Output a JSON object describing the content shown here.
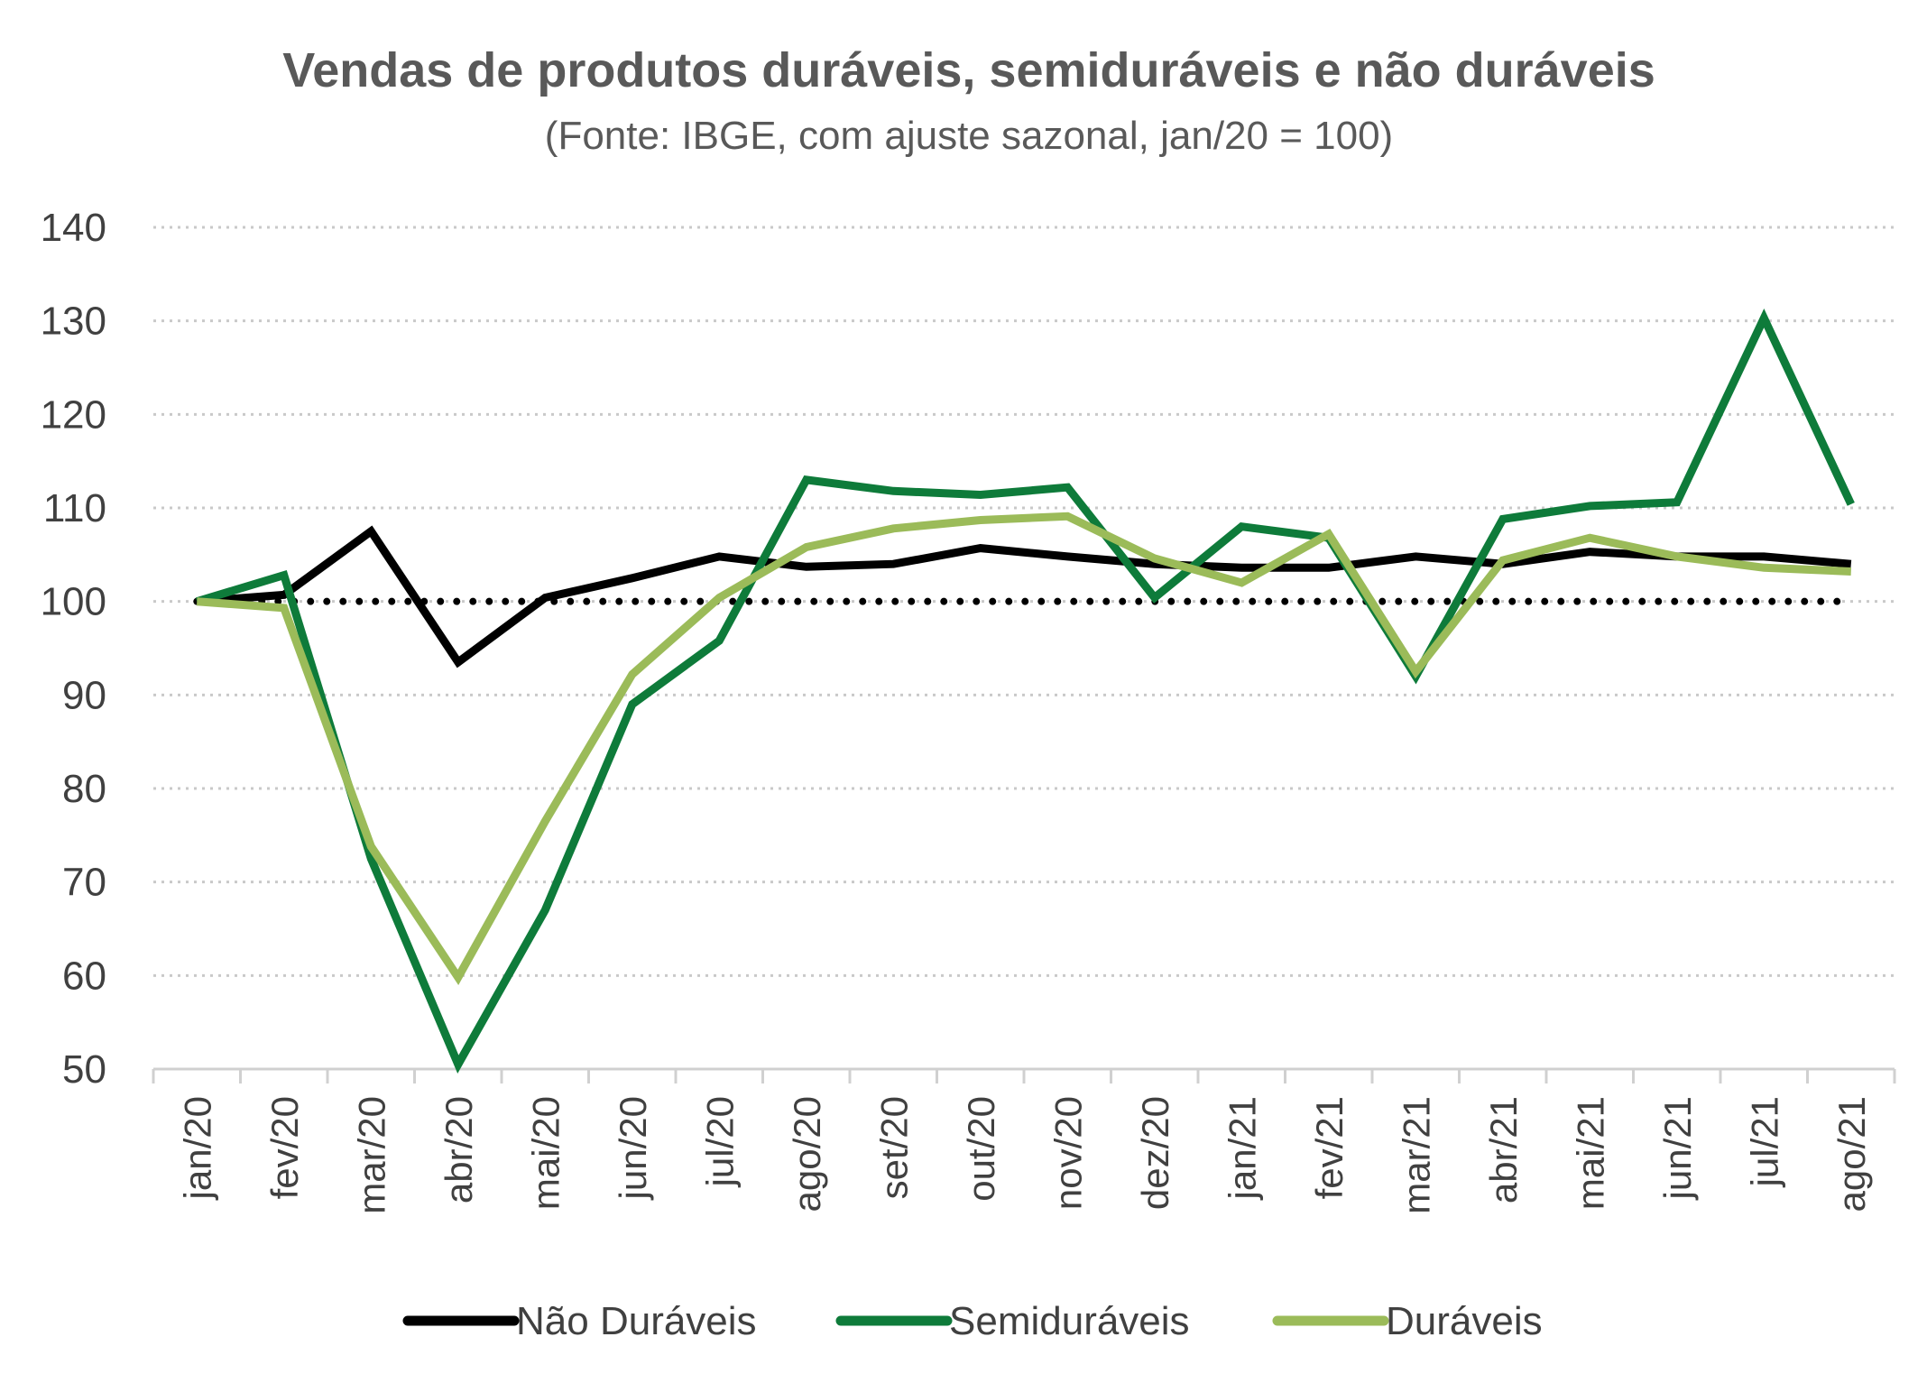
{
  "chart_data": {
    "type": "line",
    "title": "Vendas de produtos duráveis, semiduráveis e não duráveis",
    "subtitle": "(Fonte: IBGE, com ajuste sazonal, jan/20 = 100)",
    "categories": [
      "jan/20",
      "fev/20",
      "mar/20",
      "abr/20",
      "mai/20",
      "jun/20",
      "jul/20",
      "ago/20",
      "set/20",
      "out/20",
      "nov/20",
      "dez/20",
      "jan/21",
      "fev/21",
      "mar/21",
      "abr/21",
      "mai/21",
      "jun/21",
      "jul/21",
      "ago/21"
    ],
    "ylim": [
      50,
      140
    ],
    "yticks": [
      50,
      60,
      70,
      80,
      90,
      100,
      110,
      120,
      130,
      140
    ],
    "grid": true,
    "legend_position": "bottom",
    "reference_line": {
      "value": 100,
      "style": "dotted",
      "color": "#000000"
    },
    "series": [
      {
        "name": "Não Duráveis",
        "color": "#000000",
        "values": [
          100.0,
          100.7,
          107.5,
          93.5,
          100.4,
          102.5,
          104.8,
          103.7,
          104.0,
          105.7,
          104.8,
          104.0,
          103.6,
          103.6,
          104.8,
          104.0,
          105.3,
          104.8,
          104.8,
          104.0
        ]
      },
      {
        "name": "Semiduráveis",
        "color": "#0E7B3A",
        "values": [
          100.0,
          102.8,
          72.5,
          50.5,
          67.0,
          89.0,
          95.8,
          113.0,
          111.8,
          111.4,
          112.2,
          100.4,
          108.0,
          106.8,
          92.0,
          108.8,
          110.2,
          110.6,
          130.3,
          110.4
        ]
      },
      {
        "name": "Duráveis",
        "color": "#9BBB59",
        "values": [
          100.0,
          99.3,
          73.8,
          59.8,
          76.5,
          92.2,
          100.4,
          105.8,
          107.8,
          108.7,
          109.1,
          104.6,
          102.0,
          107.2,
          92.5,
          104.4,
          106.8,
          104.8,
          103.6,
          103.2
        ]
      }
    ]
  }
}
